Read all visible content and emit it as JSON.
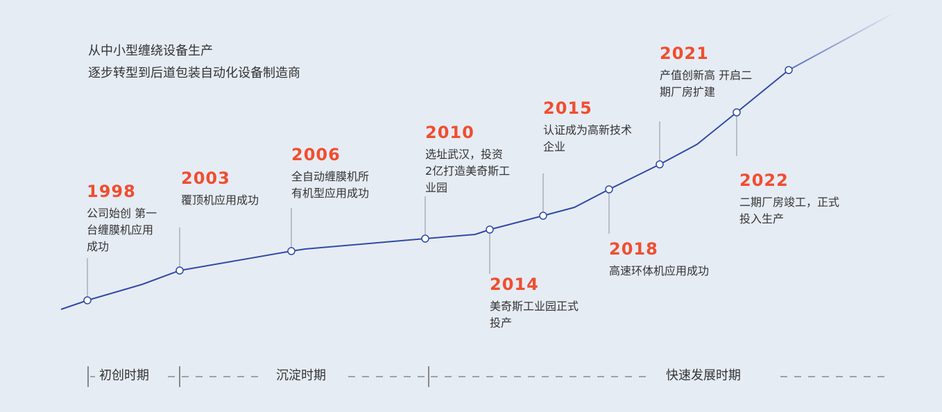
{
  "intro": {
    "line1": "从中小型缠绕设备生产",
    "line2": "逐步转型到后道包装自动化设备制造商"
  },
  "colors": {
    "accent": "#f04e30",
    "line": "#2f4aa8",
    "stem": "#a9b0bd",
    "background": "#e6ecf4"
  },
  "events": [
    {
      "year": "1998",
      "desc": "公司始创 第一\n台缠膜机应用\n成功"
    },
    {
      "year": "2003",
      "desc": "覆顶机应用成功"
    },
    {
      "year": "2006",
      "desc": "全自动缠膜机所\n有机型应用成功"
    },
    {
      "year": "2010",
      "desc": "选址武汉，投资\n2亿打造美奇斯工\n业园"
    },
    {
      "year": "2014",
      "desc": "美奇斯工业园正式\n投产"
    },
    {
      "year": "2015",
      "desc": "认证成为高新技术\n企业"
    },
    {
      "year": "2018",
      "desc": "高速环体机应用成功"
    },
    {
      "year": "2021",
      "desc": "产值创新高 开启二\n期厂房扩建"
    },
    {
      "year": "2022",
      "desc": "二期厂房竣工，正式\n投入生产"
    }
  ],
  "phases": [
    "初创时期",
    "沉淀时期",
    "快速发展时期"
  ]
}
